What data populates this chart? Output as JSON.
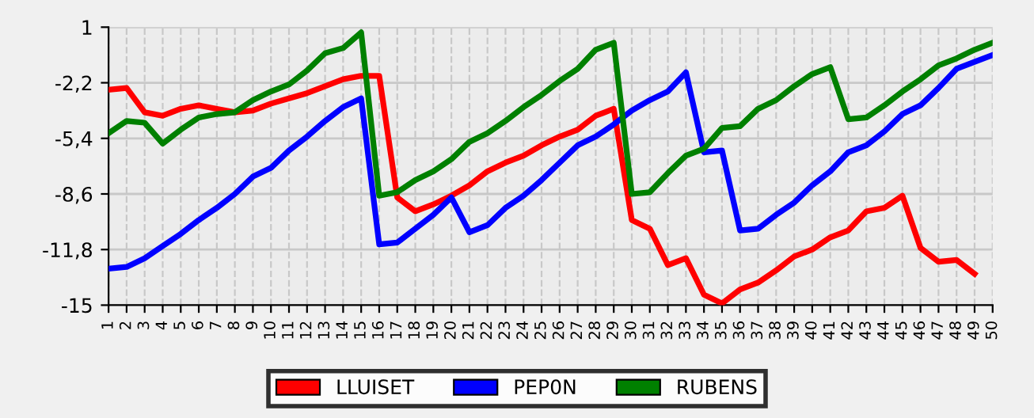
{
  "chart_data": {
    "type": "line",
    "categories": [
      "1",
      "2",
      "3",
      "4",
      "5",
      "6",
      "7",
      "8",
      "9",
      "10",
      "11",
      "12",
      "13",
      "14",
      "15",
      "16",
      "17",
      "18",
      "19",
      "20",
      "21",
      "22",
      "23",
      "24",
      "25",
      "26",
      "27",
      "28",
      "29",
      "30",
      "31",
      "32",
      "33",
      "34",
      "35",
      "36",
      "37",
      "38",
      "39",
      "40",
      "41",
      "42",
      "43",
      "44",
      "45",
      "46",
      "47",
      "48",
      "49",
      "50"
    ],
    "series": [
      {
        "name": "LLUISET",
        "color": "#ff0000",
        "values": [
          -2.6,
          -2.5,
          -3.9,
          -4.1,
          -3.7,
          -3.5,
          -3.7,
          -3.9,
          -3.8,
          -3.4,
          -3.1,
          -2.8,
          -2.4,
          -2.0,
          -1.8,
          -1.8,
          -8.8,
          -9.6,
          -9.2,
          -8.7,
          -8.1,
          -7.3,
          -6.8,
          -6.4,
          -5.8,
          -5.3,
          -4.9,
          -4.1,
          -3.7,
          -10.1,
          -10.6,
          -12.7,
          -12.3,
          -14.4,
          -14.9,
          -14.1,
          -13.7,
          -13.0,
          -12.2,
          -11.8,
          -11.1,
          -10.7,
          -9.6,
          -9.4,
          -8.7,
          -11.7,
          -12.5,
          -12.4,
          -13.2,
          null
        ]
      },
      {
        "name": "PEP0N",
        "color": "#0000ff",
        "values": [
          -12.9,
          -12.8,
          -12.3,
          -11.6,
          -10.9,
          -10.1,
          -9.4,
          -8.6,
          -7.6,
          -7.1,
          -6.1,
          -5.3,
          -4.4,
          -3.6,
          -3.1,
          -11.5,
          -11.4,
          -10.6,
          -9.8,
          -8.8,
          -10.8,
          -10.4,
          -9.4,
          -8.7,
          -7.8,
          -6.8,
          -5.8,
          -5.3,
          -4.6,
          -3.8,
          -3.2,
          -2.7,
          -1.6,
          -6.2,
          -6.1,
          -10.7,
          -10.6,
          -9.8,
          -9.1,
          -8.1,
          -7.3,
          -6.2,
          -5.8,
          -5.0,
          -4.0,
          -3.5,
          -2.5,
          -1.4,
          -1.0,
          -0.6
        ]
      },
      {
        "name": "RUBENS",
        "color": "#008000",
        "values": [
          -5.1,
          -4.4,
          -4.5,
          -5.7,
          -4.9,
          -4.2,
          -4.0,
          -3.9,
          -3.2,
          -2.7,
          -2.3,
          -1.5,
          -0.5,
          -0.2,
          0.7,
          -8.7,
          -8.5,
          -7.8,
          -7.3,
          -6.6,
          -5.6,
          -5.1,
          -4.4,
          -3.6,
          -2.9,
          -2.1,
          -1.4,
          -0.3,
          0.1,
          -8.6,
          -8.5,
          -7.4,
          -6.4,
          -6.0,
          -4.8,
          -4.7,
          -3.7,
          -3.2,
          -2.4,
          -1.7,
          -1.3,
          -4.3,
          -4.2,
          -3.5,
          -2.7,
          -2.0,
          -1.2,
          -0.8,
          -0.3,
          0.1
        ]
      }
    ],
    "ylim": [
      -15,
      1
    ],
    "yticks": [
      1,
      {
        "value": -2.2,
        "label": "-2,2"
      },
      {
        "value": -5.4,
        "label": "-5,4"
      },
      {
        "value": -8.6,
        "label": "-8,6"
      },
      {
        "value": -11.8,
        "label": "-11,8"
      },
      -15
    ],
    "grid": true,
    "legend": "bottom",
    "marker": "none",
    "line_style": "solid"
  }
}
